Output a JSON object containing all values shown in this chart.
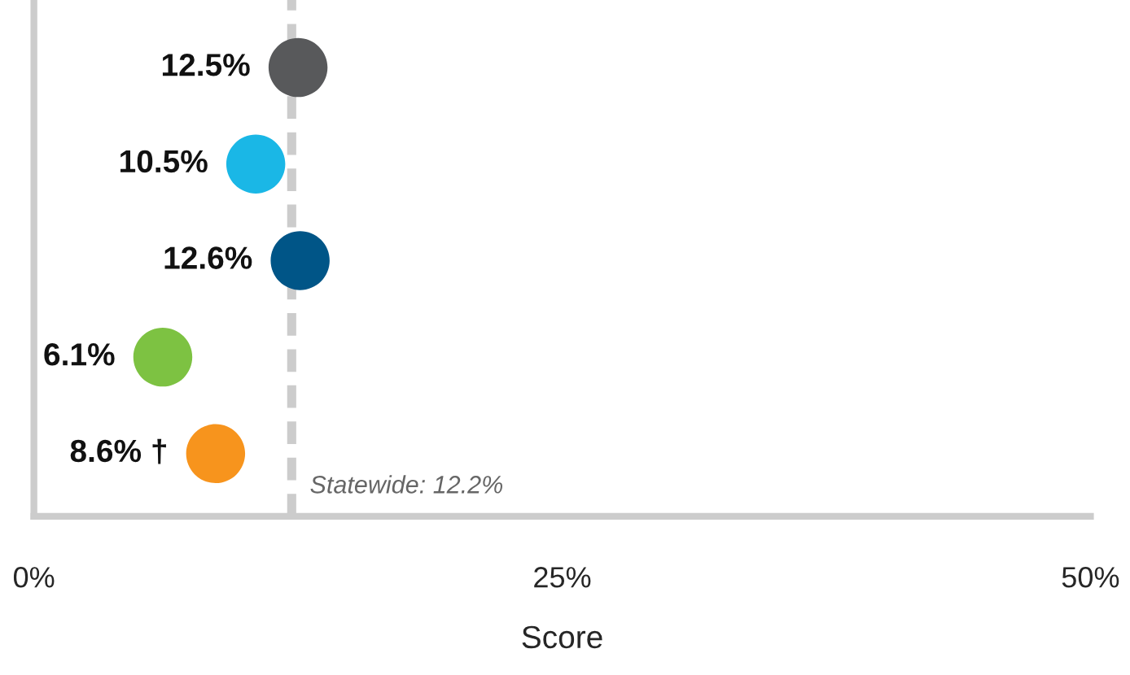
{
  "chart_data": {
    "type": "scatter",
    "orientation": "horizontal",
    "xlabel": "Score",
    "categories": [
      null,
      null,
      null,
      null,
      null
    ],
    "values": [
      12.5,
      10.5,
      12.6,
      6.1,
      8.6
    ],
    "colors": [
      "#58595b",
      "#1ab7e6",
      "#005587",
      "#7dc242",
      "#f7941d"
    ],
    "value_labels": [
      "12.5%",
      "10.5%",
      "12.6%",
      "6.1%",
      "8.6% †"
    ],
    "xlim": [
      0,
      50
    ],
    "xticks": [
      {
        "value": 0,
        "label": "0%"
      },
      {
        "value": 25,
        "label": "25%"
      },
      {
        "value": 50,
        "label": "50%"
      }
    ],
    "ref_lines": [
      {
        "axis": "x",
        "value": 12.2,
        "label": "Statewide: 12.2%",
        "color": "#cccccc",
        "line_style": "dashed"
      }
    ],
    "grid": false,
    "legend": false,
    "marker": "circle"
  }
}
